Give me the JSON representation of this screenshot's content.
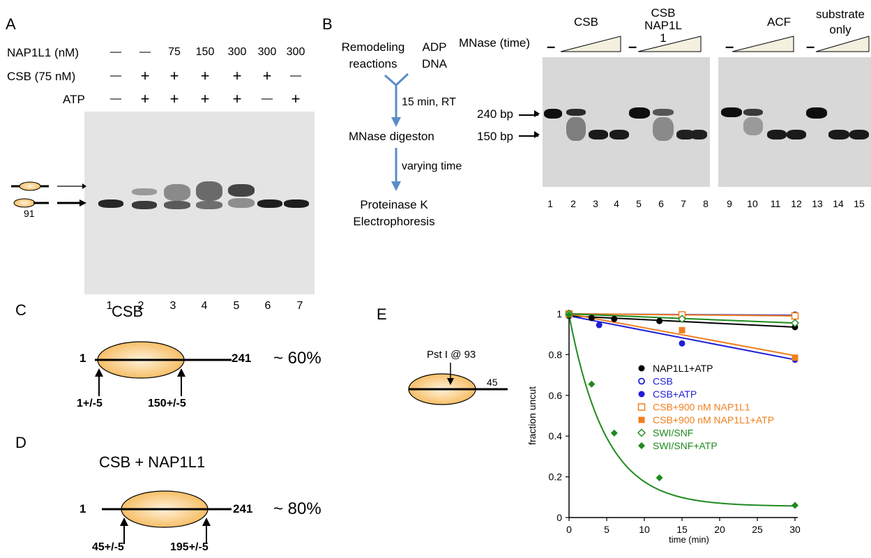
{
  "panelA": {
    "letter": "A",
    "rows": [
      {
        "label": "NAP1L1  (nM)",
        "values": [
          "—",
          "—",
          "75",
          "150",
          "300",
          "300",
          "300"
        ]
      },
      {
        "label": "CSB (75 nM)",
        "values": [
          "—",
          "+",
          "+",
          "+",
          "+",
          "+",
          "—"
        ]
      },
      {
        "label": "ATP",
        "values": [
          "—",
          "+",
          "+",
          "+",
          "+",
          "—",
          "+"
        ]
      }
    ],
    "side_label": "91",
    "lanes": [
      "1",
      "2",
      "3",
      "4",
      "5",
      "6",
      "7"
    ]
  },
  "panelB": {
    "letter": "B",
    "flow": {
      "left_text": [
        "Remodeling",
        "reactions"
      ],
      "right_text": [
        "ADP",
        "DNA"
      ],
      "step1": "15 min, RT",
      "step2_box": "MNase digeston",
      "step2": "varying time",
      "step3": [
        "Proteinase K",
        "Electrophoresis"
      ]
    },
    "mnase_label": "MNase (time)",
    "groups": [
      {
        "label": "CSB"
      },
      {
        "label": "CSB\nNAP1L\n1"
      },
      {
        "label": "ACF"
      },
      {
        "label": "substrate\nonly"
      }
    ],
    "dash": "–",
    "markers": [
      "240 bp",
      "150 bp"
    ],
    "lanes": [
      "1",
      "2",
      "3",
      "4",
      "5",
      "6",
      "7",
      "8",
      "9",
      "10",
      "11",
      "12",
      "13",
      "14",
      "15"
    ]
  },
  "panelC": {
    "letter": "C",
    "title": "CSB",
    "start": "1",
    "end": "241",
    "percent": "~ 60%",
    "left_pos": "1+/-5",
    "right_pos": "150+/-5"
  },
  "panelD": {
    "letter": "D",
    "title": "CSB + NAP1L1",
    "start": "1",
    "end": "241",
    "percent": "~ 80%",
    "left_pos": "45+/-5",
    "right_pos": "195+/-5"
  },
  "panelE": {
    "letter": "E",
    "site_label": "Pst I @ 93",
    "site_num": "45"
  },
  "colors": {
    "nucleosome_light": "#fff3dc",
    "nucleosome_dark": "#f5b450",
    "arrow_blue": "#5b8cc6",
    "black_series": "#000000",
    "blue_series": "#1f1fd6",
    "orange_series": "#f07f1e",
    "green_series": "#1f8a1f"
  },
  "chart_data": {
    "type": "scatter",
    "xlabel": "time (min)",
    "ylabel": "fraction uncut",
    "xlim": [
      0,
      30
    ],
    "ylim": [
      0,
      1
    ],
    "xticks": [
      0,
      5,
      10,
      15,
      20,
      25,
      30
    ],
    "yticks": [
      0,
      0.2,
      0.4,
      0.6,
      0.8,
      1
    ],
    "ytick_labels": [
      "0",
      "0.2",
      "0.4",
      "0.6",
      "0.8",
      "1"
    ],
    "legend_position": "inside-right",
    "series": [
      {
        "name": "NAP1L1+ATP",
        "color": "#000000",
        "marker": "circle-filled",
        "x": [
          0,
          3,
          6,
          12,
          30
        ],
        "y": [
          0.99,
          0.98,
          0.975,
          0.965,
          0.935
        ],
        "fit": [
          [
            0,
            0.99
          ],
          [
            30,
            0.935
          ]
        ]
      },
      {
        "name": "CSB",
        "color": "#1f1fd6",
        "marker": "circle-open",
        "x": [
          0,
          15,
          30
        ],
        "y": [
          1.0,
          0.995,
          0.995
        ],
        "fit": [
          [
            0,
            1.0
          ],
          [
            30,
            0.993
          ]
        ]
      },
      {
        "name": "CSB+ATP",
        "color": "#1f1fd6",
        "marker": "circle-filled",
        "x": [
          0,
          4,
          15,
          30
        ],
        "y": [
          0.995,
          0.945,
          0.855,
          0.775
        ],
        "fit": [
          [
            0,
            0.99
          ],
          [
            30,
            0.775
          ]
        ]
      },
      {
        "name": "CSB+900 nM NAP1L1",
        "color": "#f07f1e",
        "marker": "square-open",
        "x": [
          0,
          15,
          30
        ],
        "y": [
          1.0,
          0.995,
          0.99
        ],
        "fit": [
          [
            0,
            1.0
          ],
          [
            30,
            0.99
          ]
        ]
      },
      {
        "name": "CSB+900 nM NAP1L1+ATP",
        "color": "#f07f1e",
        "marker": "square-filled",
        "x": [
          0,
          15,
          30
        ],
        "y": [
          1.0,
          0.92,
          0.785
        ],
        "fit": [
          [
            0,
            1.0
          ],
          [
            30,
            0.795
          ]
        ]
      },
      {
        "name": "SWI/SNF",
        "color": "#1f8a1f",
        "marker": "diamond-open",
        "x": [
          0,
          15,
          30
        ],
        "y": [
          1.0,
          0.975,
          0.955
        ],
        "fit": [
          [
            0,
            1.0
          ],
          [
            30,
            0.955
          ]
        ]
      },
      {
        "name": "SWI/SNF+ATP",
        "color": "#1f8a1f",
        "marker": "diamond-filled",
        "x": [
          0,
          3,
          6,
          12,
          30
        ],
        "y": [
          0.995,
          0.655,
          0.415,
          0.195,
          0.06
        ],
        "fit_curve": {
          "a": 0.94,
          "k": 0.205,
          "c": 0.055
        }
      }
    ]
  }
}
